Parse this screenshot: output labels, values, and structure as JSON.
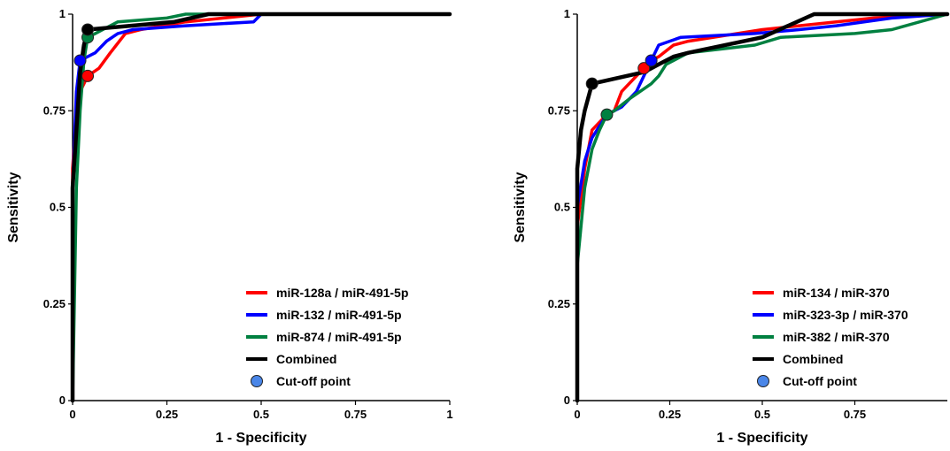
{
  "chart_data": [
    {
      "type": "line",
      "xlabel": "1 - Specificity",
      "ylabel": "Sensitivity",
      "xlim": [
        0,
        1
      ],
      "ylim": [
        0,
        1
      ],
      "xticks": [
        "0",
        "0.25",
        "0.5",
        "0.75",
        "1"
      ],
      "yticks": [
        "0",
        "0.25",
        "0.5",
        "0.75",
        "1"
      ],
      "xtick_values": [
        0,
        0.25,
        0.5,
        0.75,
        1
      ],
      "ytick_values": [
        0,
        0.25,
        0.5,
        0.75,
        1
      ],
      "grid": false,
      "legend_position": "bottom-right",
      "series": [
        {
          "name": "miR-128a / miR-491-5p",
          "color": "#ff0000",
          "x": [
            0,
            0,
            0.01,
            0.01,
            0.02,
            0.03,
            0.04,
            0.07,
            0.1,
            0.14,
            0.18,
            0.3,
            0.5,
            0.6,
            1
          ],
          "y": [
            0,
            0.6,
            0.75,
            0.78,
            0.8,
            0.82,
            0.84,
            0.86,
            0.9,
            0.95,
            0.96,
            0.98,
            1,
            1,
            1
          ]
        },
        {
          "name": "miR-132 / miR-491-5p",
          "color": "#0000ff",
          "x": [
            0,
            0,
            0.01,
            0.02,
            0.04,
            0.06,
            0.09,
            0.12,
            0.16,
            0.3,
            0.48,
            0.5,
            1
          ],
          "y": [
            0,
            0.55,
            0.8,
            0.88,
            0.89,
            0.9,
            0.93,
            0.95,
            0.96,
            0.97,
            0.98,
            1,
            1
          ]
        },
        {
          "name": "miR-874 / miR-491-5p",
          "color": "#008040",
          "x": [
            0,
            0.01,
            0.02,
            0.03,
            0.04,
            0.06,
            0.08,
            0.12,
            0.25,
            0.3,
            1
          ],
          "y": [
            0,
            0.55,
            0.75,
            0.88,
            0.94,
            0.95,
            0.96,
            0.98,
            0.99,
            1,
            1
          ]
        },
        {
          "name": "Combined",
          "color": "#000000",
          "x": [
            0,
            0,
            0.01,
            0.02,
            0.03,
            0.04,
            0.27,
            0.36,
            0.5,
            1
          ],
          "y": [
            0,
            0.55,
            0.7,
            0.85,
            0.92,
            0.96,
            0.98,
            1,
            1,
            1
          ]
        }
      ],
      "cutoff_points": [
        {
          "series": "miR-128a / miR-491-5p",
          "x": 0.04,
          "y": 0.84,
          "color": "#ff0000"
        },
        {
          "series": "miR-132 / miR-491-5p",
          "x": 0.02,
          "y": 0.88,
          "color": "#0000ff"
        },
        {
          "series": "miR-874 / miR-491-5p",
          "x": 0.04,
          "y": 0.94,
          "color": "#008040"
        },
        {
          "series": "Combined",
          "x": 0.04,
          "y": 0.96,
          "color": "#000000"
        }
      ],
      "legend": [
        {
          "label": "miR-128a / miR-491-5p",
          "kind": "line",
          "color": "#ff0000"
        },
        {
          "label": "miR-132 / miR-491-5p",
          "kind": "line",
          "color": "#0000ff"
        },
        {
          "label": "miR-874 / miR-491-5p",
          "kind": "line",
          "color": "#008040"
        },
        {
          "label": "Combined",
          "kind": "line",
          "color": "#000000"
        },
        {
          "label": "Cut-off point",
          "kind": "marker",
          "color": "#4a86e8"
        }
      ]
    },
    {
      "type": "line",
      "xlabel": "1 - Specificity",
      "ylabel": "Sensitivity",
      "xlim": [
        0,
        1
      ],
      "ylim": [
        0,
        1
      ],
      "xticks": [
        "0",
        "0.25",
        "0.5",
        "0.75"
      ],
      "yticks": [
        "0",
        "0.25",
        "0.5",
        "0.75",
        "1"
      ],
      "xtick_values": [
        0,
        0.25,
        0.5,
        0.75
      ],
      "ytick_values": [
        0,
        0.25,
        0.5,
        0.75,
        1
      ],
      "grid": false,
      "legend_position": "bottom-right",
      "series": [
        {
          "name": "miR-134 / miR-370",
          "color": "#ff0000",
          "x": [
            0,
            0,
            0.02,
            0.04,
            0.08,
            0.1,
            0.12,
            0.14,
            0.18,
            0.2,
            0.22,
            0.26,
            0.3,
            0.5,
            0.6,
            0.7,
            0.8,
            1
          ],
          "y": [
            0,
            0.45,
            0.6,
            0.7,
            0.74,
            0.75,
            0.8,
            0.82,
            0.86,
            0.88,
            0.89,
            0.92,
            0.93,
            0.96,
            0.97,
            0.98,
            0.99,
            1
          ]
        },
        {
          "name": "miR-323-3p / miR-370",
          "color": "#0000ff",
          "x": [
            0,
            0,
            0.02,
            0.04,
            0.08,
            0.12,
            0.16,
            0.2,
            0.22,
            0.28,
            0.48,
            0.6,
            0.7,
            0.85,
            1
          ],
          "y": [
            0,
            0.5,
            0.62,
            0.68,
            0.74,
            0.76,
            0.8,
            0.88,
            0.92,
            0.94,
            0.95,
            0.96,
            0.97,
            0.99,
            1
          ]
        },
        {
          "name": "miR-382 / miR-370",
          "color": "#008040",
          "x": [
            0,
            0,
            0.02,
            0.04,
            0.06,
            0.08,
            0.1,
            0.14,
            0.2,
            0.22,
            0.24,
            0.3,
            0.48,
            0.55,
            0.75,
            0.85,
            1
          ],
          "y": [
            0,
            0.35,
            0.55,
            0.65,
            0.7,
            0.74,
            0.75,
            0.78,
            0.82,
            0.84,
            0.87,
            0.9,
            0.92,
            0.94,
            0.95,
            0.96,
            1
          ]
        },
        {
          "name": "Combined",
          "color": "#000000",
          "x": [
            0,
            0,
            0.01,
            0.02,
            0.04,
            0.18,
            0.2,
            0.22,
            0.26,
            0.3,
            0.35,
            0.5,
            0.64,
            0.75,
            1
          ],
          "y": [
            0,
            0.6,
            0.7,
            0.75,
            0.82,
            0.85,
            0.86,
            0.87,
            0.89,
            0.9,
            0.91,
            0.94,
            1,
            1,
            1
          ]
        }
      ],
      "cutoff_points": [
        {
          "series": "miR-134 / miR-370",
          "x": 0.18,
          "y": 0.86,
          "color": "#ff0000"
        },
        {
          "series": "miR-323-3p / miR-370",
          "x": 0.2,
          "y": 0.88,
          "color": "#0000ff"
        },
        {
          "series": "miR-382 / miR-370",
          "x": 0.08,
          "y": 0.74,
          "color": "#008040"
        },
        {
          "series": "Combined",
          "x": 0.04,
          "y": 0.82,
          "color": "#000000"
        }
      ],
      "legend": [
        {
          "label": "miR-134 / miR-370",
          "kind": "line",
          "color": "#ff0000"
        },
        {
          "label": "miR-323-3p / miR-370",
          "kind": "line",
          "color": "#0000ff"
        },
        {
          "label": "miR-382 / miR-370",
          "kind": "line",
          "color": "#008040"
        },
        {
          "label": "Combined",
          "kind": "line",
          "color": "#000000"
        },
        {
          "label": "Cut-off point",
          "kind": "marker",
          "color": "#4a86e8"
        }
      ]
    }
  ]
}
